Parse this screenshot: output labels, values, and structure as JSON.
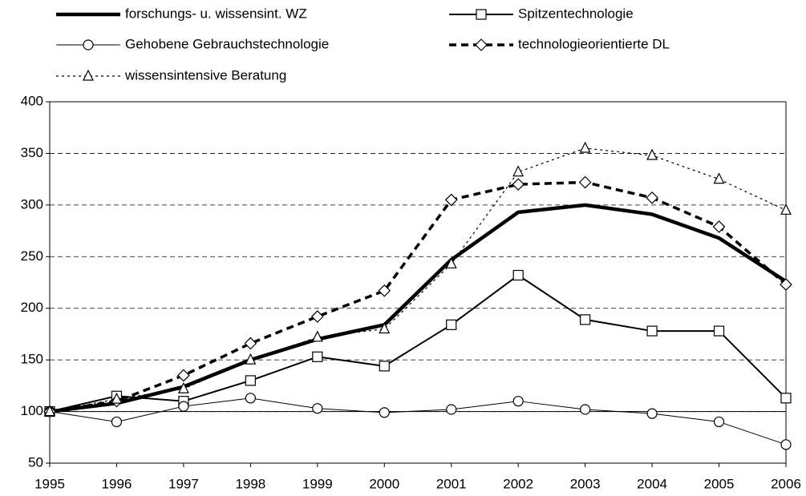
{
  "chart_data": {
    "type": "line",
    "x": [
      1995,
      1996,
      1997,
      1998,
      1999,
      2000,
      2001,
      2002,
      2003,
      2004,
      2005,
      2006
    ],
    "xlim": [
      1995,
      2006
    ],
    "xticks": [
      1995,
      1996,
      1997,
      1998,
      1999,
      2000,
      2001,
      2002,
      2003,
      2004,
      2005,
      2006
    ],
    "ylim": [
      50,
      400
    ],
    "yticks": [
      50,
      100,
      150,
      200,
      250,
      300,
      350,
      400
    ],
    "grid": true,
    "reference_line": 100,
    "series": [
      {
        "name": "forschungs- u. wissensint. WZ",
        "color": "#000000",
        "marker": "none",
        "line_width": 4.5,
        "dash": "solid",
        "values": [
          100,
          108,
          124,
          150,
          170,
          184,
          247,
          293,
          300,
          291,
          268,
          226
        ]
      },
      {
        "name": "Spitzentechnologie",
        "color": "#000000",
        "marker": "square",
        "line_width": 2,
        "dash": "solid",
        "values": [
          100,
          115,
          110,
          130,
          153,
          144,
          184,
          232,
          189,
          178,
          178,
          113
        ]
      },
      {
        "name": "Gehobene Gebrauchstechnologie",
        "color": "#000000",
        "marker": "circle",
        "line_width": 1,
        "dash": "solid",
        "values": [
          100,
          90,
          105,
          113,
          103,
          99,
          102,
          110,
          102,
          98,
          90,
          68
        ]
      },
      {
        "name": "technologieorientierte DL",
        "color": "#000000",
        "marker": "diamond",
        "line_width": 3.5,
        "dash": "dashed",
        "values": [
          100,
          110,
          135,
          166,
          192,
          217,
          305,
          320,
          322,
          307,
          279,
          223
        ]
      },
      {
        "name": "wissensintensive Beratung",
        "color": "#000000",
        "marker": "triangle",
        "line_width": 1.2,
        "dash": "dotted",
        "values": [
          100,
          112,
          122,
          150,
          172,
          180,
          243,
          332,
          355,
          348,
          325,
          295
        ]
      }
    ]
  }
}
